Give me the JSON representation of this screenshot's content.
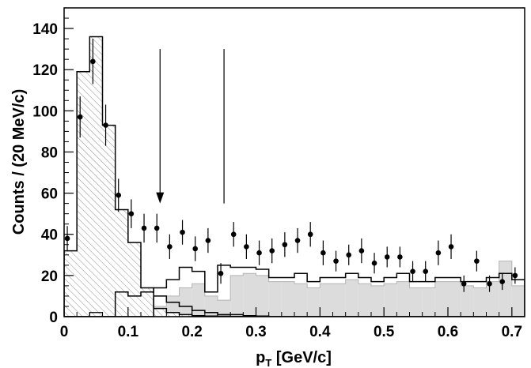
{
  "chart_data": {
    "type": "bar",
    "title": "",
    "xlabel": "p_T [GeV/c]",
    "xlabel_main": "p",
    "xlabel_sub": "T",
    "xlabel_unit": " [GeV/c]",
    "ylabel": "Counts / (20 MeV/c)",
    "xlim": [
      0,
      0.72
    ],
    "ylim": [
      0,
      150
    ],
    "bin_width": 0.02,
    "x_ticks": [
      0,
      0.1,
      0.2,
      0.3,
      0.4,
      0.5,
      0.6,
      0.7
    ],
    "x_tick_labels": [
      "0",
      "0.1",
      "0.2",
      "0.3",
      "0.4",
      "0.5",
      "0.6",
      "0.7"
    ],
    "y_ticks": [
      0,
      20,
      40,
      60,
      80,
      100,
      120,
      140
    ],
    "y_tick_labels": [
      "0",
      "20",
      "40",
      "60",
      "80",
      "100",
      "120",
      "140"
    ],
    "grid": false,
    "legend": "none",
    "series": [
      {
        "style": "hatched-histogram",
        "color": "#8c8c8c",
        "values": [
          32,
          119,
          136,
          93,
          52,
          36,
          14,
          4,
          2,
          1,
          0.5,
          0.3,
          0.2,
          0.1,
          0,
          0,
          0,
          0,
          0,
          0,
          0,
          0,
          0,
          0,
          0,
          0,
          0,
          0,
          0,
          0,
          0,
          0,
          0,
          0,
          0,
          0
        ]
      },
      {
        "style": "gray-filled-histogram",
        "color": "#dcdcdc",
        "values": [
          0,
          0,
          0,
          0,
          1,
          1,
          2,
          5,
          10,
          14,
          16,
          10,
          8,
          20,
          21,
          20,
          17,
          17,
          16,
          14,
          16,
          16,
          18,
          16,
          15,
          16,
          17,
          14,
          14,
          17,
          17,
          15,
          14,
          17,
          27,
          15
        ]
      },
      {
        "style": "outline-histogram",
        "color": "#000000",
        "values": [
          0,
          0,
          0,
          0,
          12,
          10,
          12,
          14,
          18,
          24,
          22,
          12,
          25,
          24,
          24,
          23,
          19,
          19,
          21,
          17,
          19,
          19,
          21,
          19,
          17,
          19,
          21,
          17,
          17,
          19,
          19,
          17,
          17,
          19,
          21,
          18
        ]
      },
      {
        "style": "outline-histogram-thin",
        "color": "#000000",
        "values": [
          0,
          0,
          2,
          0,
          0,
          0,
          0,
          0,
          0,
          0,
          0,
          0,
          0,
          0,
          0,
          0,
          0,
          0,
          0,
          0,
          0,
          0,
          0,
          0,
          0,
          0,
          0,
          0,
          0,
          0,
          0,
          0,
          0,
          0,
          0,
          0
        ]
      },
      {
        "style": "outline-histogram-tail",
        "color": "#000000",
        "values": [
          0,
          0,
          0,
          0,
          0,
          0,
          0,
          10,
          7,
          5,
          3,
          2,
          1,
          1,
          0.5,
          0.3,
          0,
          0,
          0,
          0,
          0,
          0,
          0,
          0,
          0,
          0,
          0,
          0,
          0,
          0,
          0,
          0,
          0,
          0,
          0,
          0
        ]
      },
      {
        "style": "data-points",
        "color": "#000000",
        "x": [
          0.005,
          0.025,
          0.045,
          0.065,
          0.085,
          0.105,
          0.125,
          0.145,
          0.165,
          0.185,
          0.205,
          0.225,
          0.245,
          0.265,
          0.285,
          0.305,
          0.325,
          0.345,
          0.365,
          0.385,
          0.405,
          0.425,
          0.445,
          0.465,
          0.485,
          0.505,
          0.525,
          0.545,
          0.565,
          0.585,
          0.605,
          0.625,
          0.645,
          0.665,
          0.685,
          0.705
        ],
        "y": [
          38,
          97,
          124,
          93,
          59,
          50,
          43,
          43,
          34,
          41,
          33,
          37,
          21,
          40,
          34,
          31,
          32,
          35,
          37,
          40,
          31,
          27,
          30,
          32,
          26,
          29,
          29,
          22,
          22,
          31,
          34,
          16,
          27,
          16,
          17,
          20
        ],
        "err": [
          6,
          10,
          11,
          10,
          8,
          7,
          7,
          7,
          6,
          6,
          6,
          6,
          5,
          6,
          6,
          6,
          6,
          6,
          6,
          6,
          6,
          5,
          5,
          6,
          5,
          5,
          5,
          5,
          5,
          6,
          6,
          4,
          5,
          4,
          4,
          4
        ]
      }
    ],
    "annotations": [
      {
        "type": "arrow",
        "x": 0.15,
        "y_top": 130,
        "y_bottom": 55
      },
      {
        "type": "vertical-line",
        "x": 0.25,
        "y_top": 130,
        "y_bottom": 55
      }
    ]
  }
}
